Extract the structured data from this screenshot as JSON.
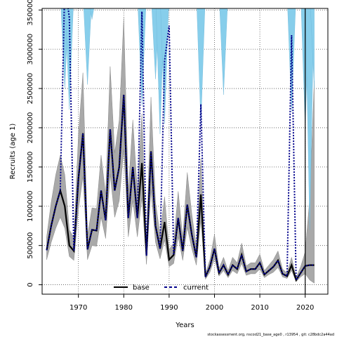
{
  "chart_data": {
    "type": "line",
    "xlabel": "Years",
    "ylabel": "Recruits (age 1)",
    "xlim": [
      1962,
      2025
    ],
    "ylim": [
      -120000,
      3520000
    ],
    "x_ticks": [
      1970,
      1980,
      1990,
      2000,
      2010,
      2020
    ],
    "y_ticks": [
      0,
      500000,
      1000000,
      1500000,
      2000000,
      2500000,
      3000000,
      3500000
    ],
    "grid": true,
    "legend_position": "bottom-center",
    "vertical_line_x": 2020,
    "colors": {
      "base_line": "#000000",
      "base_band": "#a9a9a9",
      "current_line": "#00008b",
      "current_band": "#87ceeb"
    },
    "series": [
      {
        "name": "base",
        "style": "solid",
        "x": [
          1963,
          1964,
          1965,
          1966,
          1967,
          1968,
          1969,
          1970,
          1971,
          1972,
          1973,
          1974,
          1975,
          1976,
          1977,
          1978,
          1979,
          1980,
          1981,
          1982,
          1983,
          1984,
          1985,
          1986,
          1987,
          1988,
          1989,
          1990,
          1991,
          1992,
          1993,
          1994,
          1995,
          1996,
          1997,
          1998,
          1999,
          2000,
          2001,
          2002,
          2003,
          2004,
          2005,
          2006,
          2007,
          2008,
          2009,
          2010,
          2011,
          2012,
          2013,
          2014,
          2015,
          2016,
          2017,
          2018,
          2019,
          2020,
          2021,
          2022
        ],
        "y": [
          440000,
          750000,
          1000000,
          1200000,
          1000000,
          500000,
          430000,
          1350000,
          1930000,
          450000,
          700000,
          690000,
          1200000,
          820000,
          1980000,
          1200000,
          1500000,
          2420000,
          850000,
          1500000,
          850000,
          1550000,
          370000,
          1700000,
          750000,
          460000,
          800000,
          320000,
          380000,
          850000,
          430000,
          1020000,
          640000,
          350000,
          1150000,
          100000,
          230000,
          460000,
          150000,
          250000,
          130000,
          250000,
          200000,
          380000,
          170000,
          200000,
          200000,
          280000,
          130000,
          180000,
          230000,
          310000,
          140000,
          110000,
          250000,
          60000,
          150000,
          240000,
          250000,
          250000
        ],
        "lower": [
          320000,
          540000,
          720000,
          860000,
          720000,
          360000,
          310000,
          960000,
          1380000,
          320000,
          500000,
          490000,
          860000,
          590000,
          1410000,
          860000,
          1070000,
          1730000,
          610000,
          1070000,
          610000,
          1110000,
          260000,
          1210000,
          540000,
          330000,
          570000,
          230000,
          270000,
          610000,
          310000,
          730000,
          460000,
          250000,
          820000,
          70000,
          160000,
          330000,
          110000,
          180000,
          90000,
          180000,
          140000,
          270000,
          120000,
          140000,
          140000,
          200000,
          90000,
          130000,
          160000,
          220000,
          100000,
          80000,
          180000,
          40000,
          100000,
          140000,
          60000,
          20000
        ],
        "upper": [
          610000,
          1050000,
          1400000,
          1650000,
          1400000,
          700000,
          600000,
          1900000,
          2700000,
          630000,
          980000,
          970000,
          1650000,
          1150000,
          2780000,
          1680000,
          2100000,
          3400000,
          1190000,
          2100000,
          1190000,
          2180000,
          520000,
          2390000,
          1050000,
          640000,
          1120000,
          450000,
          530000,
          1190000,
          600000,
          1430000,
          900000,
          490000,
          1610000,
          140000,
          320000,
          640000,
          210000,
          350000,
          180000,
          350000,
          280000,
          530000,
          240000,
          280000,
          280000,
          390000,
          180000,
          250000,
          320000,
          430000,
          200000,
          150000,
          350000,
          90000,
          230000,
          420000,
          1100000,
          2600000
        ]
      },
      {
        "name": "current",
        "style": "dashed",
        "x": [
          1963,
          1964,
          1965,
          1966,
          1967,
          1968,
          1969,
          1970,
          1971,
          1972,
          1973,
          1974,
          1975,
          1976,
          1977,
          1978,
          1979,
          1980,
          1981,
          1982,
          1983,
          1984,
          1985,
          1986,
          1987,
          1988,
          1989,
          1990,
          1991,
          1992,
          1993,
          1994,
          1995,
          1996,
          1997,
          1998,
          1999,
          2000,
          2001,
          2002,
          2003,
          2004,
          2005,
          2006,
          2007,
          2008,
          2009,
          2010,
          2011,
          2012,
          2013,
          2014,
          2015,
          2016,
          2017,
          2018,
          2019,
          2020,
          2021,
          2022
        ],
        "y": [
          440000,
          750000,
          1000000,
          1200000,
          1000000,
          500000,
          430000,
          1350000,
          1930000,
          450000,
          700000,
          690000,
          1200000,
          820000,
          1980000,
          1200000,
          1500000,
          2420000,
          850000,
          1500000,
          850000,
          1550000,
          370000,
          1700000,
          750000,
          460000,
          800000,
          320000,
          380000,
          850000,
          430000,
          1020000,
          640000,
          350000,
          1150000,
          100000,
          230000,
          460000,
          150000,
          250000,
          130000,
          250000,
          200000,
          380000,
          170000,
          200000,
          200000,
          280000,
          130000,
          180000,
          230000,
          310000,
          140000,
          110000,
          250000,
          60000,
          150000,
          240000,
          250000,
          250000
        ],
        "clipped_y": [
          null,
          null,
          null,
          null,
          3850000,
          3400000,
          null,
          null,
          null,
          null,
          null,
          null,
          null,
          null,
          null,
          null,
          null,
          null,
          null,
          null,
          null,
          3480000,
          null,
          null,
          null,
          null,
          2850000,
          3300000,
          null,
          null,
          null,
          null,
          null,
          null,
          2300000,
          null,
          null,
          null,
          null,
          null,
          null,
          null,
          null,
          null,
          null,
          null,
          null,
          null,
          null,
          null,
          null,
          null,
          null,
          null,
          3180000,
          null,
          null,
          null,
          null,
          null
        ],
        "band_upper_clipped": [
          false,
          false,
          false,
          false,
          true,
          true,
          true,
          false,
          false,
          true,
          true,
          false,
          false,
          false,
          false,
          false,
          false,
          false,
          false,
          false,
          false,
          true,
          false,
          false,
          true,
          true,
          true,
          true,
          false,
          false,
          false,
          false,
          false,
          false,
          true,
          false,
          false,
          false,
          false,
          true,
          false,
          false,
          false,
          false,
          false,
          false,
          false,
          false,
          false,
          false,
          false,
          false,
          false,
          false,
          true,
          false,
          false,
          true,
          true,
          true
        ],
        "band_lower": [
          null,
          null,
          null,
          null,
          2500000,
          2230000,
          null,
          null,
          null,
          2550000,
          3380000,
          null,
          null,
          null,
          null,
          null,
          null,
          null,
          null,
          null,
          null,
          2280000,
          null,
          null,
          2620000,
          1920000,
          2050000,
          3500000,
          null,
          null,
          null,
          null,
          null,
          null,
          2030000,
          null,
          null,
          null,
          null,
          2420000,
          null,
          null,
          null,
          null,
          null,
          null,
          null,
          null,
          null,
          null,
          null,
          null,
          null,
          null,
          2200000,
          null,
          null,
          2000000,
          700000,
          2500000
        ]
      }
    ]
  },
  "legend": {
    "items": [
      {
        "label": "base"
      },
      {
        "label": "current"
      }
    ]
  },
  "footer": {
    "text": "stockassessment.org,  nscod21_base_age0 , r13954 ,  git: c28bdc2a44ad"
  }
}
